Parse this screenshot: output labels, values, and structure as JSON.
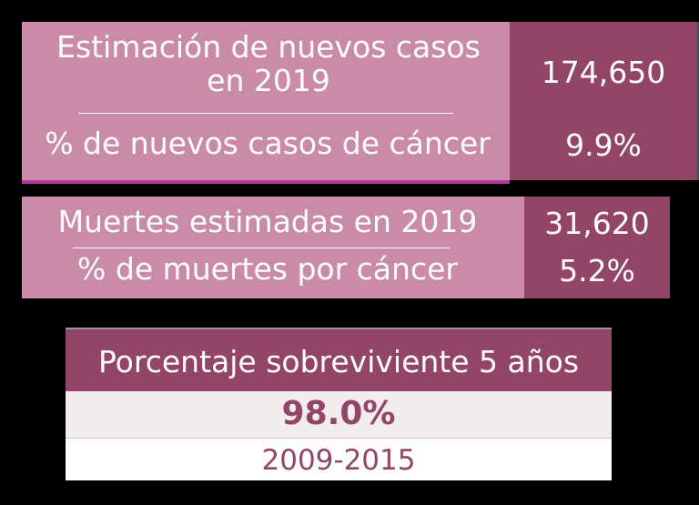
{
  "new_cases": {
    "title": "Estimación de nuevos casos en 2019",
    "value": "174,650",
    "percent_label": "% de nuevos casos de cáncer",
    "percent_value": "9.9%"
  },
  "deaths": {
    "title": "Muertes estimadas en 2019",
    "value": "31,620",
    "percent_label": "% de muertes por cáncer",
    "percent_value": "5.2%"
  },
  "survival": {
    "header": "Porcentaje sobreviviente 5 años",
    "value": "98.0%",
    "period": "2009-2015"
  },
  "colors": {
    "light_panel": "#c98ba7",
    "dark_panel": "#924567",
    "accent_line": "#b5389c",
    "background": "#000000"
  }
}
